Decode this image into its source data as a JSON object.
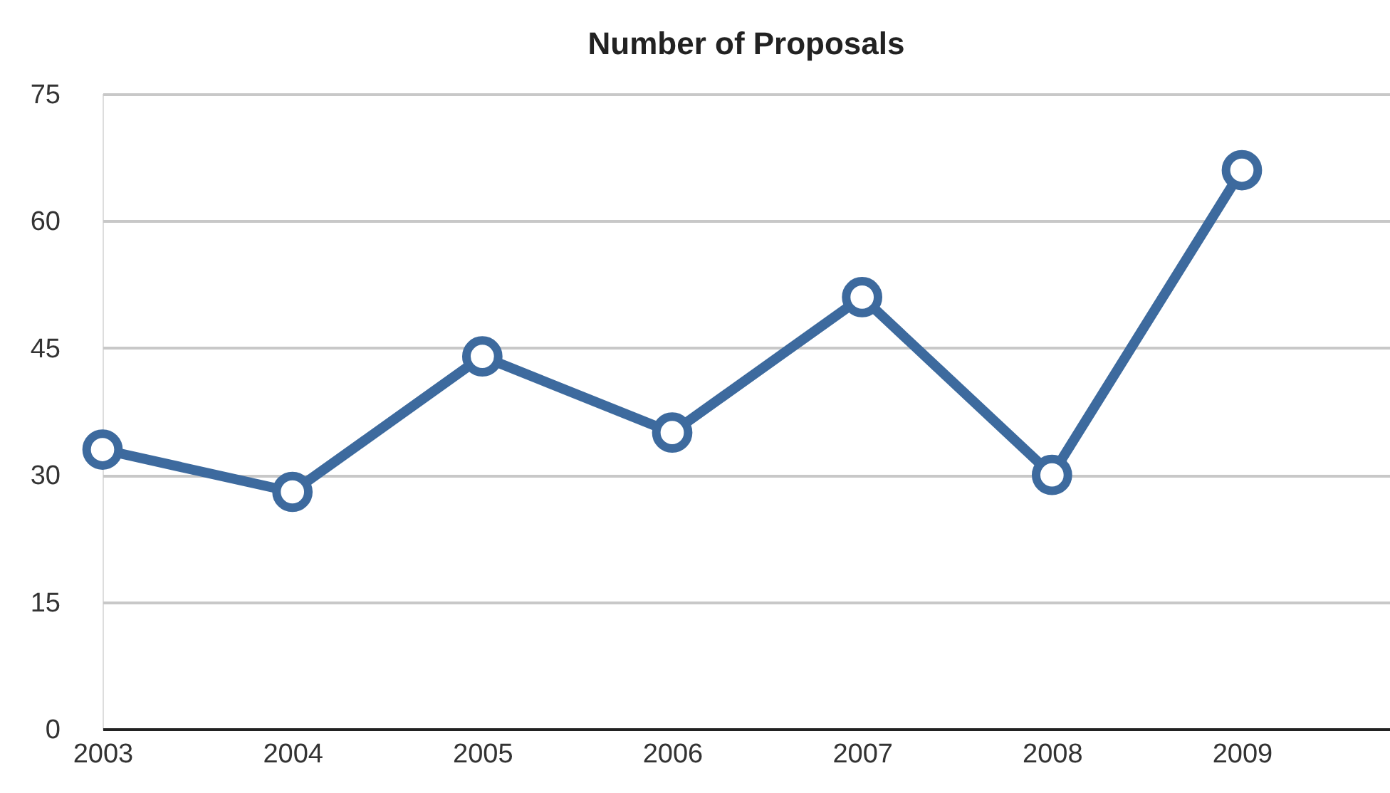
{
  "chart_data": {
    "type": "line",
    "title": "Number of Proposals",
    "x": [
      2003,
      2004,
      2005,
      2006,
      2007,
      2008,
      2009
    ],
    "series": [
      {
        "color": "#3d6a9e",
        "values": [
          33,
          28,
          44,
          35,
          51,
          30,
          66
        ]
      }
    ],
    "xlim": [
      2003,
      2009.78
    ],
    "xticks": [
      2003,
      2004,
      2005,
      2006,
      2007,
      2008,
      2009
    ],
    "ylim": [
      0,
      75
    ],
    "yticks": [
      0,
      15,
      30,
      45,
      60,
      75
    ],
    "grid": "y",
    "marker": "circle",
    "line_style": "solid",
    "legend": false
  }
}
